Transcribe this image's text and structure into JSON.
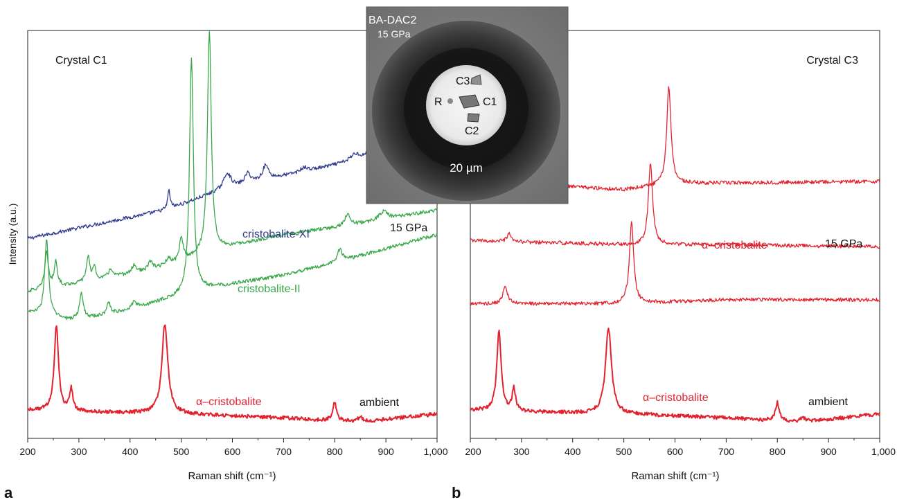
{
  "ylabel": "Intensity (a.u.)",
  "inset": {
    "title": "BA-DAC2",
    "pressure": "15 GPa",
    "scale": "20 µm",
    "labels": {
      "c3": "C3",
      "r": "R",
      "c1": "C1",
      "c2": "C2"
    }
  },
  "chart_data": [
    {
      "type": "line",
      "panel_letter": "a",
      "title": "Crystal C1",
      "xlabel": "Raman shift (cm⁻¹)",
      "xlim": [
        200,
        1000
      ],
      "xticks": [
        "200",
        "300",
        "400",
        "500",
        "600",
        "700",
        "800",
        "900",
        "1,000"
      ],
      "annotations": {
        "top": "15 GPa",
        "bottom": "ambient"
      },
      "series": [
        {
          "name": "cristobalite-XI",
          "color": "#2e3a8c",
          "baseline": [
            [
              200,
              0.49
            ],
            [
              470,
              0.56
            ],
            [
              560,
              0.6
            ],
            [
              650,
              0.63
            ],
            [
              800,
              0.67
            ],
            [
              1000,
              0.73
            ]
          ],
          "peaks": [
            [
              476,
              0.045,
              3
            ],
            [
              590,
              0.04,
              9
            ],
            [
              630,
              0.025,
              7
            ],
            [
              665,
              0.035,
              7
            ],
            [
              740,
              0.01,
              8
            ],
            [
              840,
              0.015,
              10
            ],
            [
              878,
              0.03,
              10
            ]
          ]
        },
        {
          "name": "cristobalite-II",
          "color": "#3aa84a",
          "baseline": [
            [
              200,
              0.36
            ],
            [
              300,
              0.38
            ],
            [
              430,
              0.41
            ],
            [
              490,
              0.43
            ],
            [
              560,
              0.46
            ],
            [
              700,
              0.5
            ],
            [
              820,
              0.52
            ],
            [
              1000,
              0.56
            ]
          ],
          "peaks": [
            [
              237,
              0.09,
              4
            ],
            [
              255,
              0.06,
              4
            ],
            [
              318,
              0.06,
              4
            ],
            [
              330,
              0.03,
              4
            ],
            [
              362,
              0.02,
              5
            ],
            [
              408,
              0.02,
              5
            ],
            [
              440,
              0.02,
              5
            ],
            [
              475,
              0.015,
              5
            ],
            [
              500,
              0.06,
              4
            ],
            [
              555,
              0.54,
              4.5
            ],
            [
              825,
              0.03,
              6
            ],
            [
              895,
              0.02,
              10
            ]
          ]
        },
        {
          "name": "",
          "color": "#3aa84a",
          "baseline": [
            [
              200,
              0.31
            ],
            [
              280,
              0.29
            ],
            [
              350,
              0.3
            ],
            [
              440,
              0.33
            ],
            [
              500,
              0.35
            ],
            [
              560,
              0.37
            ],
            [
              700,
              0.4
            ],
            [
              800,
              0.43
            ],
            [
              1000,
              0.5
            ]
          ],
          "peaks": [
            [
              237,
              0.19,
              4.5
            ],
            [
              305,
              0.06,
              4.5
            ],
            [
              358,
              0.03,
              5
            ],
            [
              408,
              0.015,
              5
            ],
            [
              520,
              0.58,
              4.5
            ],
            [
              810,
              0.03,
              6
            ]
          ]
        },
        {
          "name": "α–cristobalite",
          "color": "#e2222e",
          "baseline": [
            [
              200,
              0.07
            ],
            [
              300,
              0.065
            ],
            [
              500,
              0.06
            ],
            [
              700,
              0.05
            ],
            [
              850,
              0.04
            ],
            [
              1000,
              0.06
            ]
          ],
          "peaks": [
            [
              256,
              0.21,
              5
            ],
            [
              285,
              0.055,
              4
            ],
            [
              468,
              0.22,
              7
            ],
            [
              800,
              0.045,
              4.5
            ],
            [
              850,
              0.012,
              6
            ]
          ]
        }
      ]
    },
    {
      "type": "line",
      "panel_letter": "b",
      "title": "Crystal C3",
      "xlabel": "Raman shift (cm⁻¹)",
      "xlim": [
        200,
        1000
      ],
      "xticks": [
        "200",
        "300",
        "400",
        "500",
        "600",
        "700",
        "800",
        "900",
        "1,000"
      ],
      "annotations": {
        "top": "15 GPa",
        "bottom": "ambient"
      },
      "series": [
        {
          "name": "α–cristobalite",
          "color": "#e2222e",
          "baseline": [
            [
              200,
              0.63
            ],
            [
              500,
              0.61
            ],
            [
              600,
              0.625
            ],
            [
              1000,
              0.63
            ]
          ],
          "peaks": [
            [
              280,
              0.03,
              4
            ],
            [
              310,
              0.01,
              5
            ],
            [
              588,
              0.24,
              5
            ]
          ]
        },
        {
          "name": "",
          "color": "#e2222e",
          "baseline": [
            [
              200,
              0.485
            ],
            [
              500,
              0.475
            ],
            [
              700,
              0.475
            ],
            [
              1000,
              0.47
            ]
          ],
          "peaks": [
            [
              275,
              0.02,
              4
            ],
            [
              552,
              0.2,
              5
            ]
          ]
        },
        {
          "name": "",
          "color": "#e2222e",
          "baseline": [
            [
              200,
              0.33
            ],
            [
              500,
              0.33
            ],
            [
              700,
              0.34
            ],
            [
              1000,
              0.34
            ]
          ],
          "peaks": [
            [
              268,
              0.045,
              5
            ],
            [
              515,
              0.2,
              5
            ]
          ]
        },
        {
          "name": "α–cristobalite",
          "color": "#e2222e",
          "baseline": [
            [
              200,
              0.07
            ],
            [
              300,
              0.065
            ],
            [
              500,
              0.06
            ],
            [
              700,
              0.05
            ],
            [
              850,
              0.04
            ],
            [
              1000,
              0.06
            ]
          ],
          "peaks": [
            [
              256,
              0.2,
              5
            ],
            [
              285,
              0.055,
              4
            ],
            [
              470,
              0.21,
              7
            ],
            [
              800,
              0.045,
              4.5
            ],
            [
              850,
              0.012,
              6
            ]
          ]
        }
      ]
    }
  ]
}
